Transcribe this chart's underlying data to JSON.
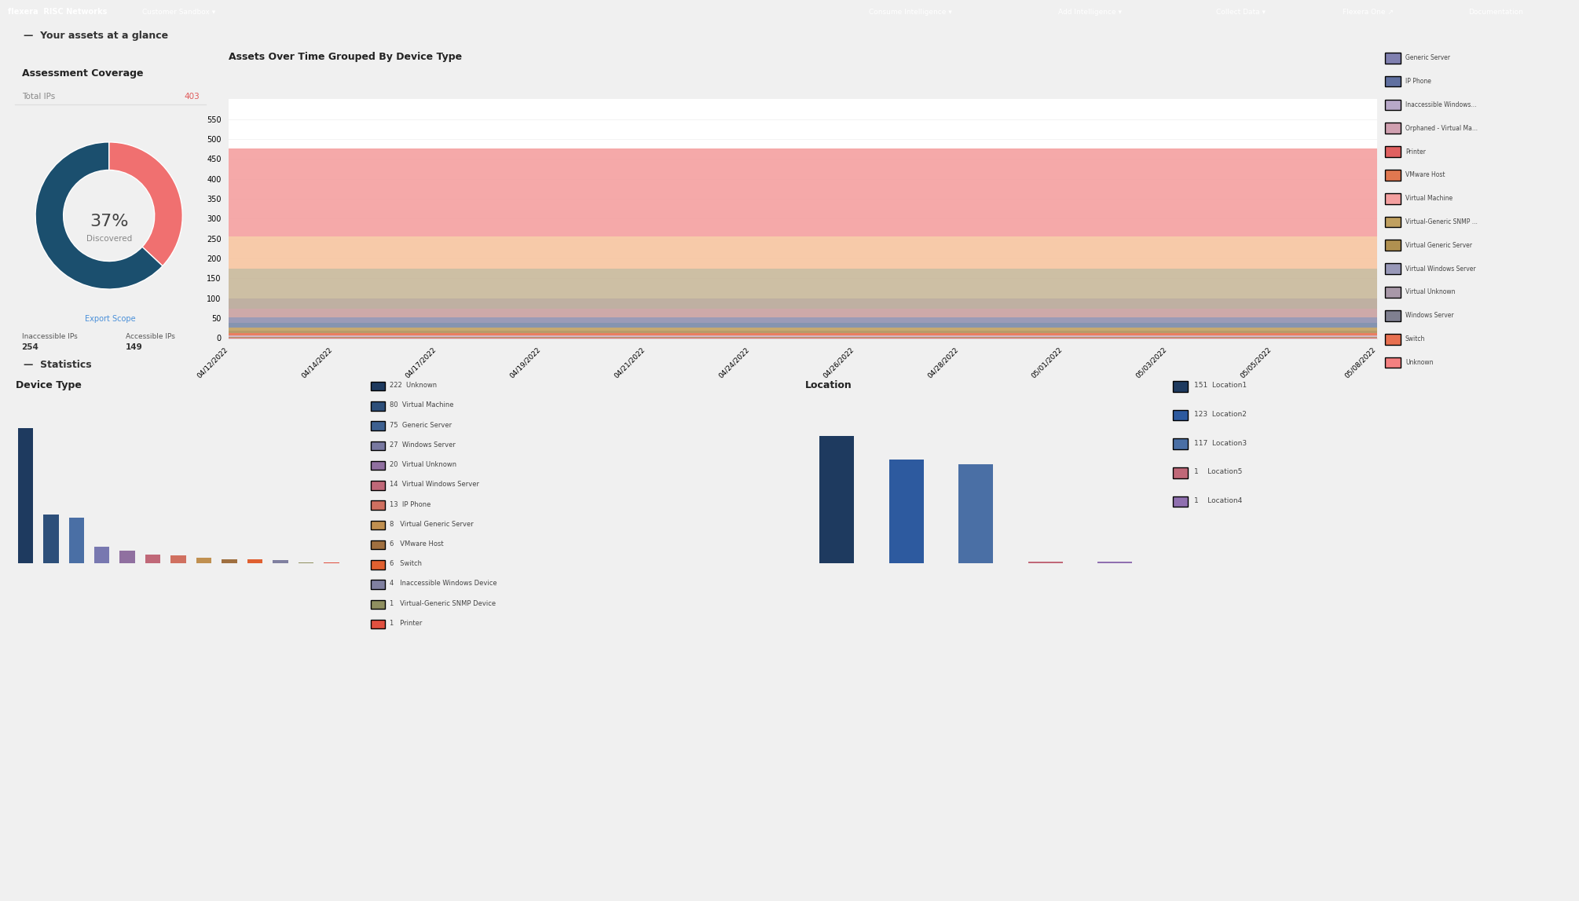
{
  "navbar_bg": "#1e2a3a",
  "navbar_text": "Flexera  RISC Networks     Customer Sandbox v                                                          Consume Intelligence v    Add Intelligence v    Collect Data v    Flexera One    Documentation",
  "page_bg": "#f0f0f0",
  "panel_bg": "#ffffff",
  "section_header_bg": "#f0f0f0",
  "section_header_text": "Your assets at a glance",
  "section2_header_text": "Statistics",
  "assessment_title": "Assessment Coverage",
  "total_ips_label": "Total IPs",
  "total_ips_value": "403",
  "total_ips_color": "#e05a5a",
  "discovered_pct": 37,
  "discovered_label": "Discovered",
  "donut_discovered_color": "#f07070",
  "donut_undiscovered_color": "#1b4f6e",
  "inaccessible_label": "Inaccessible IPs",
  "inaccessible_value": "254",
  "accessible_label": "Accessible IPs",
  "accessible_value": "149",
  "export_scope_text": "Export Scope",
  "export_scope_color": "#4a90d9",
  "area_chart_title": "Assets Over Time Grouped By Device Type",
  "area_dates": [
    "04/12/2022",
    "04/14/2022",
    "04/17/2022",
    "04/19/2022",
    "04/21/2022",
    "04/24/2022",
    "04/26/2022",
    "04/28/2022",
    "05/01/2022",
    "05/03/2022",
    "05/05/2022",
    "05/08/2022"
  ],
  "area_series": [
    {
      "name": "Unknown",
      "color": "#f4a0a0",
      "values": [
        222,
        222,
        222,
        222,
        222,
        222,
        222,
        222,
        222,
        222,
        222,
        222
      ]
    },
    {
      "name": "Virtual Machine",
      "color": "#f7c5a0",
      "values": [
        80,
        80,
        80,
        80,
        80,
        80,
        80,
        80,
        80,
        80,
        80,
        80
      ]
    },
    {
      "name": "Generic Server",
      "color": "#c8b89a",
      "values": [
        75,
        75,
        75,
        75,
        75,
        75,
        75,
        75,
        75,
        75,
        75,
        75
      ]
    },
    {
      "name": "Windows Server",
      "color": "#b8a898",
      "values": [
        27,
        27,
        27,
        27,
        27,
        27,
        27,
        27,
        27,
        27,
        27,
        27
      ]
    },
    {
      "name": "Virtual Unknown",
      "color": "#c8a0a0",
      "values": [
        20,
        20,
        20,
        20,
        20,
        20,
        20,
        20,
        20,
        20,
        20,
        20
      ]
    },
    {
      "name": "Virtual Windows Server",
      "color": "#9090b0",
      "values": [
        14,
        14,
        14,
        14,
        14,
        14,
        14,
        14,
        14,
        14,
        14,
        14
      ]
    },
    {
      "name": "IP Phone",
      "color": "#7888a8",
      "values": [
        13,
        13,
        13,
        13,
        13,
        13,
        13,
        13,
        13,
        13,
        13,
        13
      ]
    },
    {
      "name": "Virtual Generic Server",
      "color": "#c0a060",
      "values": [
        8,
        8,
        8,
        8,
        8,
        8,
        8,
        8,
        8,
        8,
        8,
        8
      ]
    },
    {
      "name": "VMware Host",
      "color": "#b0905a",
      "values": [
        6,
        6,
        6,
        6,
        6,
        6,
        6,
        6,
        6,
        6,
        6,
        6
      ]
    },
    {
      "name": "Switch",
      "color": "#e87050",
      "values": [
        6,
        6,
        6,
        6,
        6,
        6,
        6,
        6,
        6,
        6,
        6,
        6
      ]
    },
    {
      "name": "Inaccessible Windows Device",
      "color": "#d0b0c0",
      "values": [
        4,
        4,
        4,
        4,
        4,
        4,
        4,
        4,
        4,
        4,
        4,
        4
      ]
    },
    {
      "name": "Virtual-Generic SNMP Device",
      "color": "#a89060",
      "values": [
        1,
        1,
        1,
        1,
        1,
        1,
        1,
        1,
        1,
        1,
        1,
        1
      ]
    },
    {
      "name": "Printer",
      "color": "#e06060",
      "values": [
        1,
        1,
        1,
        1,
        1,
        1,
        1,
        1,
        1,
        1,
        1,
        1
      ]
    }
  ],
  "area_legend": [
    {
      "name": "Generic Server",
      "color": "#8080b0"
    },
    {
      "name": "IP Phone",
      "color": "#6070a0"
    },
    {
      "name": "Inaccessible Windows...",
      "color": "#b8a8c8"
    },
    {
      "name": "Orphaned - Virtual Ma...",
      "color": "#d0a0b0"
    },
    {
      "name": "Printer",
      "color": "#e06060"
    },
    {
      "name": "VMware Host",
      "color": "#e07850"
    },
    {
      "name": "Virtual Machine",
      "color": "#f4a0a0"
    },
    {
      "name": "Virtual-Generic SNMP ...",
      "color": "#c0a060"
    },
    {
      "name": "Virtual Generic Server",
      "color": "#b09050"
    },
    {
      "name": "Virtual Windows Server",
      "color": "#9898b8"
    },
    {
      "name": "Virtual Unknown",
      "color": "#a898a8"
    },
    {
      "name": "Windows Server",
      "color": "#808090"
    },
    {
      "name": "Switch",
      "color": "#e87050"
    },
    {
      "name": "Unknown",
      "color": "#f48080"
    }
  ],
  "device_type_title": "Device Type",
  "device_type_items": [
    {
      "label": "222  Unknown",
      "color": "#1e3a5f"
    },
    {
      "label": "80  Virtual Machine",
      "color": "#2d4f7a"
    },
    {
      "label": "75  Generic Server",
      "color": "#3d6090"
    },
    {
      "label": "27  Windows Server",
      "color": "#7878a0"
    },
    {
      "label": "20  Virtual Unknown",
      "color": "#9070a0"
    },
    {
      "label": "14  Virtual Windows Server",
      "color": "#c06878"
    },
    {
      "label": "13  IP Phone",
      "color": "#d07060"
    },
    {
      "label": "8   Virtual Generic Server",
      "color": "#c09050"
    },
    {
      "label": "6   VMware Host",
      "color": "#a07040"
    },
    {
      "label": "6   Switch",
      "color": "#e06030"
    },
    {
      "label": "4   Inaccessible Windows Device",
      "color": "#8080a0"
    },
    {
      "label": "1   Virtual-Generic SNMP Device",
      "color": "#909060"
    },
    {
      "label": "1   Printer",
      "color": "#e05040"
    }
  ],
  "device_type_bar_values": [
    222,
    80,
    75,
    27,
    20,
    14,
    13,
    8,
    6,
    6,
    4,
    1,
    1
  ],
  "device_type_bar_colors": [
    "#1e3a5f",
    "#2d4f7a",
    "#4a6fa5",
    "#7878b0",
    "#9070a0",
    "#c06878",
    "#d07060",
    "#c09050",
    "#a07040",
    "#e06030",
    "#8080a0",
    "#909060",
    "#e05040"
  ],
  "location_title": "Location",
  "location_items": [
    {
      "label": "151  Location1",
      "color": "#1e3a5f"
    },
    {
      "label": "123  Location2",
      "color": "#2d5a9f"
    },
    {
      "label": "117  Location3",
      "color": "#4a6fa5"
    },
    {
      "label": "1    Location5",
      "color": "#c06878"
    },
    {
      "label": "1    Location4",
      "color": "#9070b0"
    }
  ],
  "location_bar_values": [
    151,
    123,
    117,
    1,
    1
  ],
  "location_bar_colors": [
    "#1e3a5f",
    "#2d5a9f",
    "#4a6fa5",
    "#c06878",
    "#9070b0"
  ]
}
